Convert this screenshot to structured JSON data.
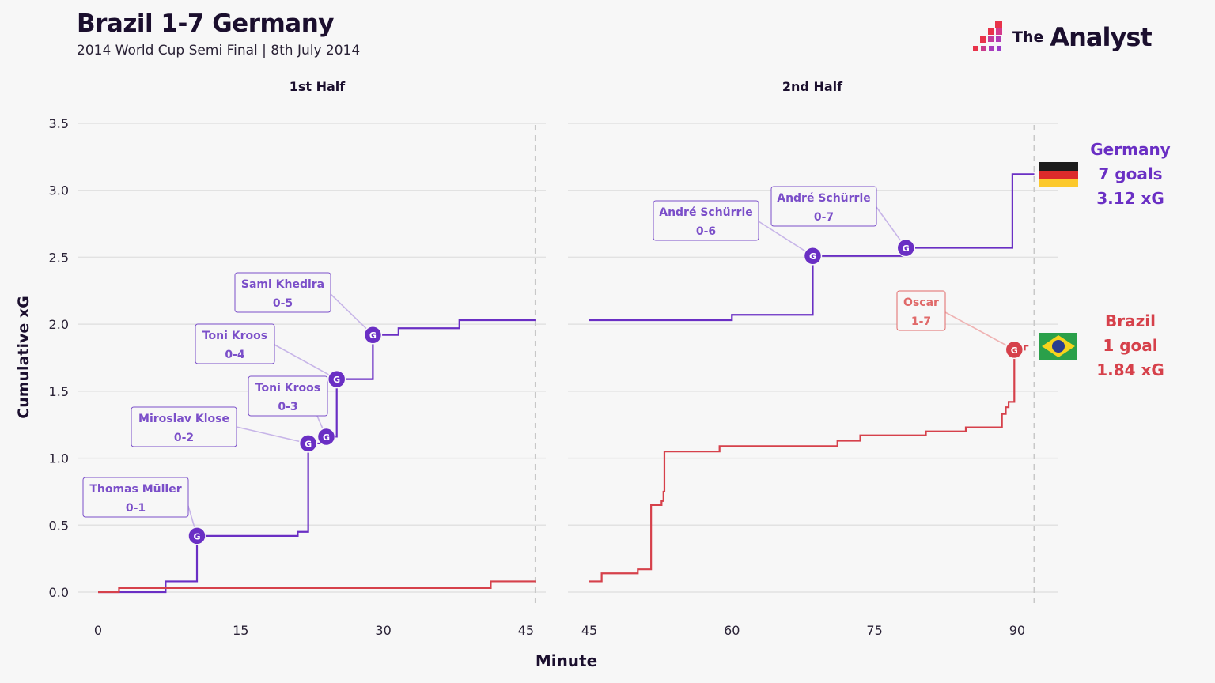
{
  "header": {
    "title": "Brazil 1-7 Germany",
    "subtitle": "2014 World Cup Semi Final | 8th July 2014",
    "logo": "The Analyst"
  },
  "colors": {
    "germany": "#6a2fc4",
    "brazil": "#d6414b",
    "label_germany": "#7b4fc9",
    "label_brazil": "#e06a6a"
  },
  "teams": {
    "germany": {
      "name": "Germany",
      "goals": "7 goals",
      "xg": "3.12 xG",
      "flag": "germany-flag"
    },
    "brazil": {
      "name": "Brazil",
      "goals": "1 goal",
      "xg": "1.84 xG",
      "flag": "brazil-flag"
    }
  },
  "chart_data": {
    "type": "line",
    "step": true,
    "title": "",
    "xlabel": "Minute",
    "ylabel": "Cumulative xG",
    "ylim": [
      0,
      3.5
    ],
    "yticks": [
      "0.0",
      "0.5",
      "1.0",
      "1.5",
      "2.0",
      "2.5",
      "3.0",
      "3.5"
    ],
    "grid": true,
    "panels": [
      {
        "title": "1st Half",
        "xlim": [
          0,
          46
        ],
        "xticks": [
          "0",
          "15",
          "30",
          "45"
        ]
      },
      {
        "title": "2nd Half",
        "xlim": [
          45,
          92
        ],
        "xticks": [
          "45",
          "60",
          "75",
          "90"
        ]
      }
    ],
    "series": [
      {
        "name": "Germany",
        "half1": [
          [
            0,
            0
          ],
          [
            7.1,
            0.08
          ],
          [
            10.4,
            0.42
          ],
          [
            21.0,
            0.45
          ],
          [
            22.1,
            0.83
          ],
          [
            22.1,
            1.11
          ],
          [
            24.0,
            1.16
          ],
          [
            25.1,
            1.59
          ],
          [
            28.9,
            1.92
          ],
          [
            31.6,
            1.97
          ],
          [
            38.0,
            2.03
          ],
          [
            46,
            2.03
          ]
        ],
        "half2": [
          [
            45,
            2.03
          ],
          [
            60.0,
            2.07
          ],
          [
            68.5,
            2.51
          ],
          [
            78.3,
            2.57
          ],
          [
            89.5,
            3.12
          ],
          [
            91.8,
            3.12
          ]
        ]
      },
      {
        "name": "Brazil",
        "half1": [
          [
            0,
            0
          ],
          [
            2.2,
            0.03
          ],
          [
            41.3,
            0.08
          ],
          [
            46,
            0.08
          ]
        ],
        "half2": [
          [
            45,
            0.08
          ],
          [
            46.3,
            0.14
          ],
          [
            50.1,
            0.17
          ],
          [
            51.5,
            0.65
          ],
          [
            52.6,
            0.68
          ],
          [
            52.8,
            0.75
          ],
          [
            52.9,
            1.05
          ],
          [
            58.7,
            1.09
          ],
          [
            71.1,
            1.13
          ],
          [
            73.5,
            1.17
          ],
          [
            80.4,
            1.2
          ],
          [
            84.6,
            1.23
          ],
          [
            88.4,
            1.33
          ],
          [
            88.8,
            1.38
          ],
          [
            89.1,
            1.42
          ],
          [
            89.7,
            1.81
          ],
          [
            90.8,
            1.84
          ],
          [
            91.2,
            1.84
          ]
        ]
      }
    ],
    "goals": [
      {
        "team": "Germany",
        "player": "Thomas Müller",
        "score": "0-1",
        "minute": 10.4,
        "xg": 0.42,
        "half": 1
      },
      {
        "team": "Germany",
        "player": "Miroslav Klose",
        "score": "0-2",
        "minute": 22.1,
        "xg": 1.11,
        "half": 1
      },
      {
        "team": "Germany",
        "player": "Toni Kroos",
        "score": "0-3",
        "minute": 24.0,
        "xg": 1.16,
        "half": 1
      },
      {
        "team": "Germany",
        "player": "Toni Kroos",
        "score": "0-4",
        "minute": 25.1,
        "xg": 1.59,
        "half": 1
      },
      {
        "team": "Germany",
        "player": "Sami Khedira",
        "score": "0-5",
        "minute": 28.9,
        "xg": 1.92,
        "half": 1
      },
      {
        "team": "Germany",
        "player": "André Schürrle",
        "score": "0-6",
        "minute": 68.5,
        "xg": 2.51,
        "half": 2
      },
      {
        "team": "Germany",
        "player": "André Schürrle",
        "score": "0-7",
        "minute": 78.3,
        "xg": 2.57,
        "half": 2
      },
      {
        "team": "Brazil",
        "player": "Oscar",
        "score": "1-7",
        "minute": 89.7,
        "xg": 1.81,
        "half": 2
      }
    ],
    "goal_marker": "G"
  }
}
